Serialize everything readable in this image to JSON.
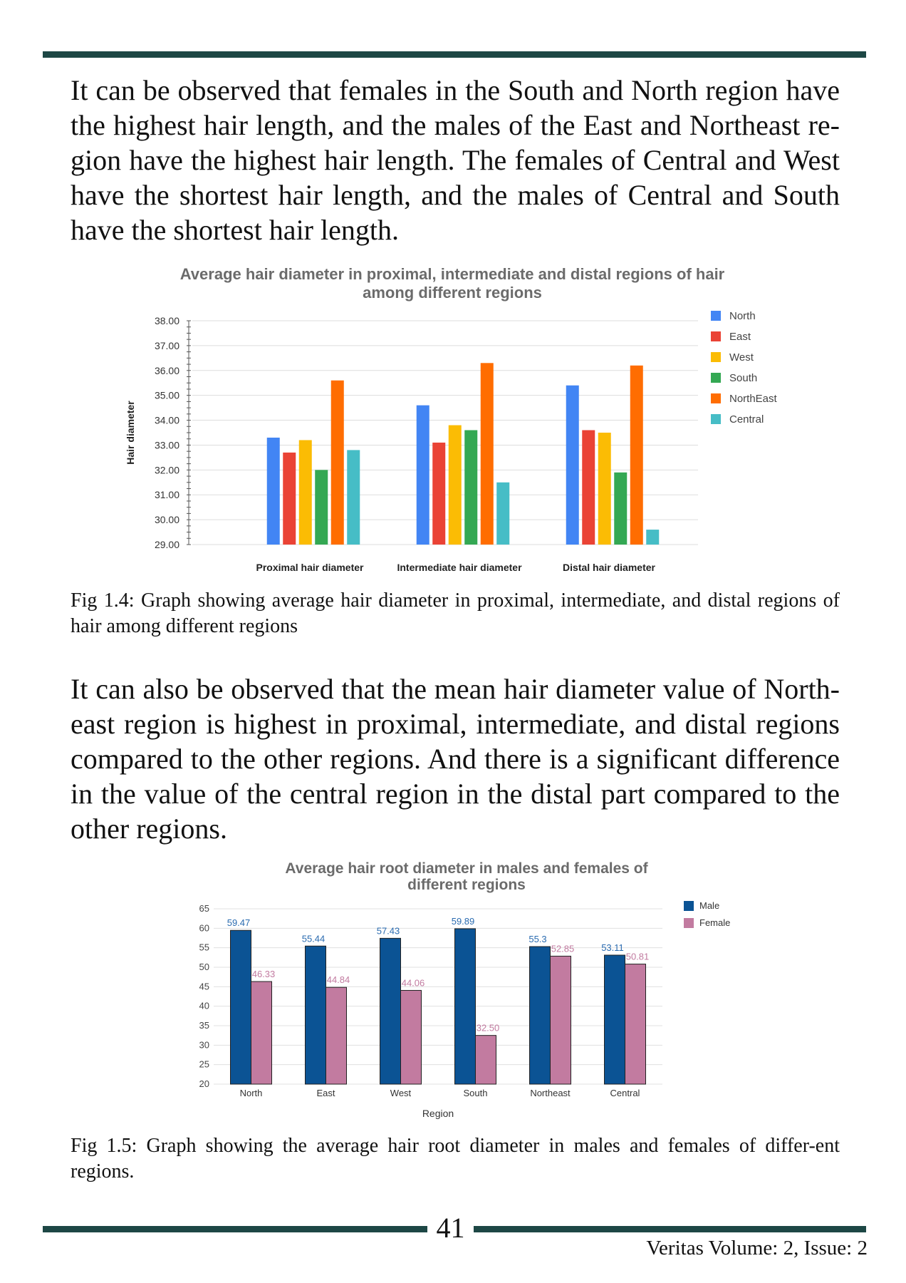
{
  "paragraphs": {
    "p1": "It can be observed that females in the South and North region have the highest hair length, and the males of the East and Northeast re-gion have the highest hair length. The females of Central and West have the shortest hair length, and the males of Central and South have the shortest hair length.",
    "p2": "It can also be observed that the mean hair diameter value of North-east region is highest in proximal, intermediate, and distal regions compared to the other regions. And there is a significant difference in the value of the central region in the distal part compared to the other regions."
  },
  "captions": {
    "fig1": "Fig 1.4: Graph showing average hair diameter in proximal, intermediate, and distal regions of hair among different regions",
    "fig2": "Fig 1.5: Graph showing the average hair root diameter in males and females of differ-ent regions."
  },
  "footer": {
    "page_number": "41",
    "journal": "Veritas Volume: 2, Issue: 2"
  },
  "chart_data": [
    {
      "type": "bar",
      "title": [
        "Average hair diameter in proximal, intermediate and distal regions of hair",
        "among different regions"
      ],
      "xlabel": "",
      "ylabel": "Hair diameter",
      "ylim": [
        29,
        38
      ],
      "y_ticks": [
        "29.00",
        "30.00",
        "31.00",
        "32.00",
        "33.00",
        "34.00",
        "35.00",
        "36.00",
        "37.00",
        "38.00"
      ],
      "categories": [
        "Proximal hair diameter",
        "Intermediate hair diameter",
        "Distal hair diameter"
      ],
      "grid": true,
      "legend_position": "right",
      "series": [
        {
          "name": "North",
          "color": "#4285f4",
          "values": [
            33.3,
            34.6,
            35.4
          ]
        },
        {
          "name": "East",
          "color": "#ea4335",
          "values": [
            32.7,
            33.1,
            33.6
          ]
        },
        {
          "name": "West",
          "color": "#fbbc04",
          "values": [
            33.2,
            33.8,
            33.5
          ]
        },
        {
          "name": "South",
          "color": "#34a853",
          "values": [
            32.0,
            33.6,
            31.9
          ]
        },
        {
          "name": "NorthEast",
          "color": "#ff6d01",
          "values": [
            35.6,
            36.3,
            36.2
          ]
        },
        {
          "name": "Central",
          "color": "#46bdc6",
          "values": [
            32.8,
            31.5,
            29.6
          ]
        }
      ]
    },
    {
      "type": "bar",
      "title": [
        "Average hair root diameter in males and females of",
        "different regions"
      ],
      "xlabel": "Region",
      "ylabel": "",
      "ylim": [
        20,
        65
      ],
      "y_ticks": [
        "20",
        "25",
        "30",
        "35",
        "40",
        "45",
        "50",
        "55",
        "60",
        "65"
      ],
      "categories": [
        "North",
        "East",
        "West",
        "South",
        "Northeast",
        "Central"
      ],
      "grid": true,
      "legend_position": "top-right",
      "series": [
        {
          "name": "Male",
          "color": "#0b5394",
          "label_color": "#2a6bb0",
          "values": [
            59.47,
            55.44,
            57.43,
            59.89,
            55.3,
            53.11
          ],
          "labels": [
            "59.47",
            "55.44",
            "57.43",
            "59.89",
            "55.3",
            "53.11"
          ]
        },
        {
          "name": "Female",
          "color": "#c27ba0",
          "label_color": "#c27ba0",
          "values": [
            46.33,
            44.84,
            44.06,
            32.5,
            52.85,
            50.81
          ],
          "labels": [
            "46.33",
            "44.84",
            "44.06",
            "32.50",
            "52.85",
            "50.81"
          ]
        }
      ]
    }
  ]
}
